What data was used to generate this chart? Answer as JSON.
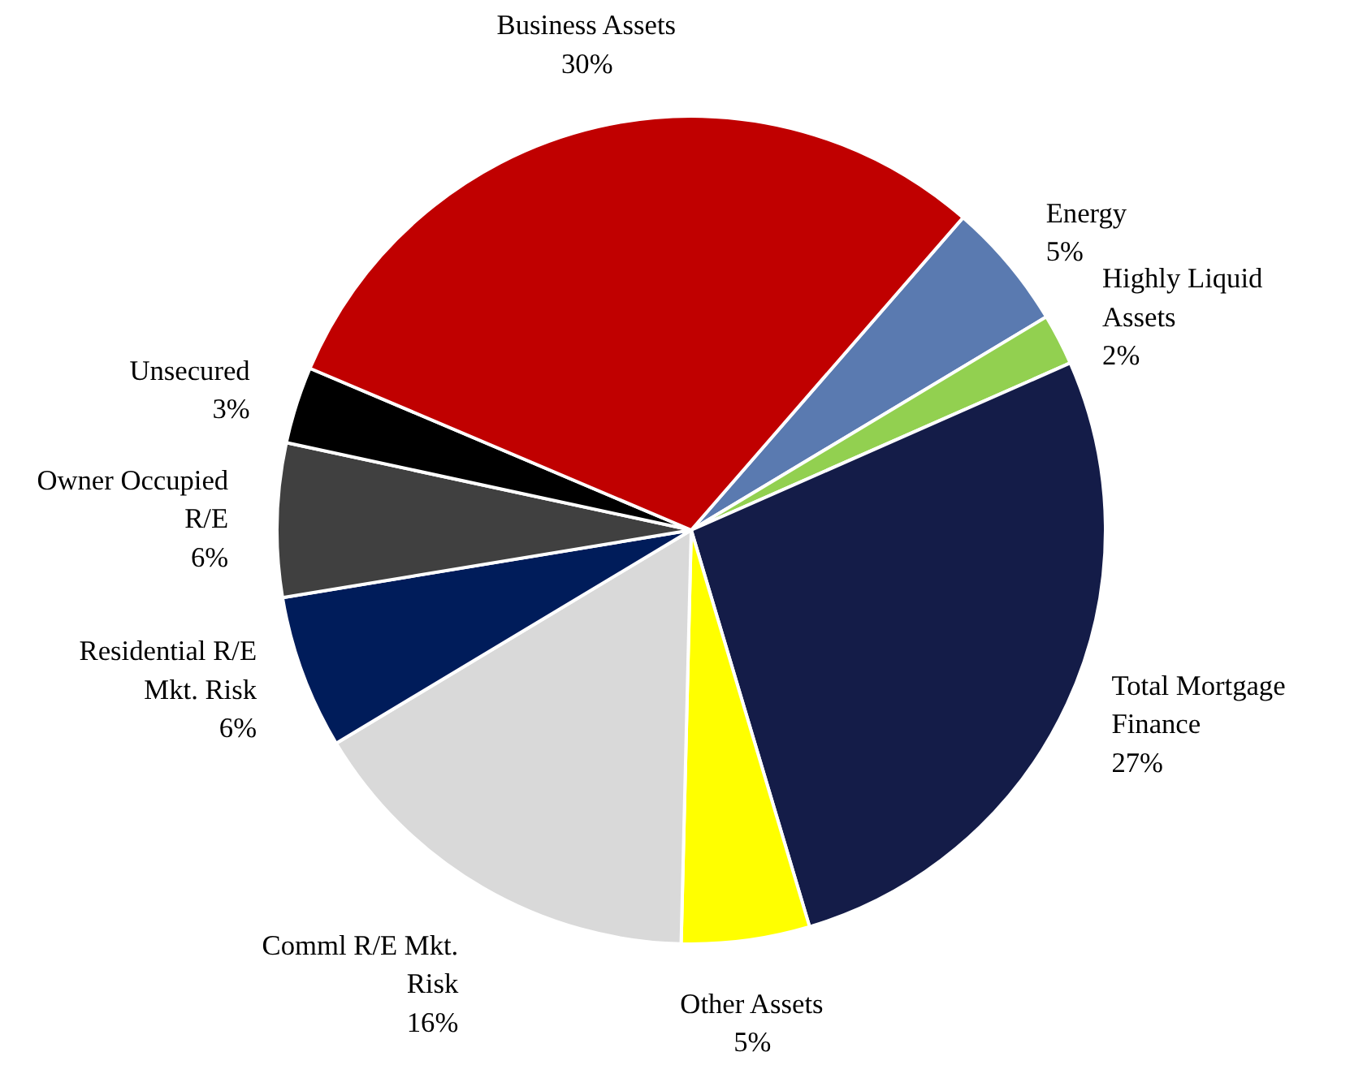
{
  "chart_data": {
    "type": "pie",
    "categories": [
      "Energy",
      "Highly Liquid\nAssets",
      "Total Mortgage\nFinance",
      "Other Assets",
      "Comml R/E Mkt.\nRisk",
      "Residential R/E\nMkt. Risk",
      "Owner Occupied\nR/E",
      "Unsecured",
      "Business Assets"
    ],
    "values": [
      5,
      2,
      27,
      5,
      16,
      6,
      6,
      3,
      30
    ],
    "value_labels": [
      "5%",
      "2%",
      "27%",
      "5%",
      "16%",
      "6%",
      "6%",
      "3%",
      "30%"
    ],
    "colors": [
      "#5a7ab0",
      "#92d050",
      "#141c48",
      "#ffff00",
      "#d9d9d9",
      "#001c5a",
      "#404040",
      "#000000",
      "#c00000"
    ]
  }
}
